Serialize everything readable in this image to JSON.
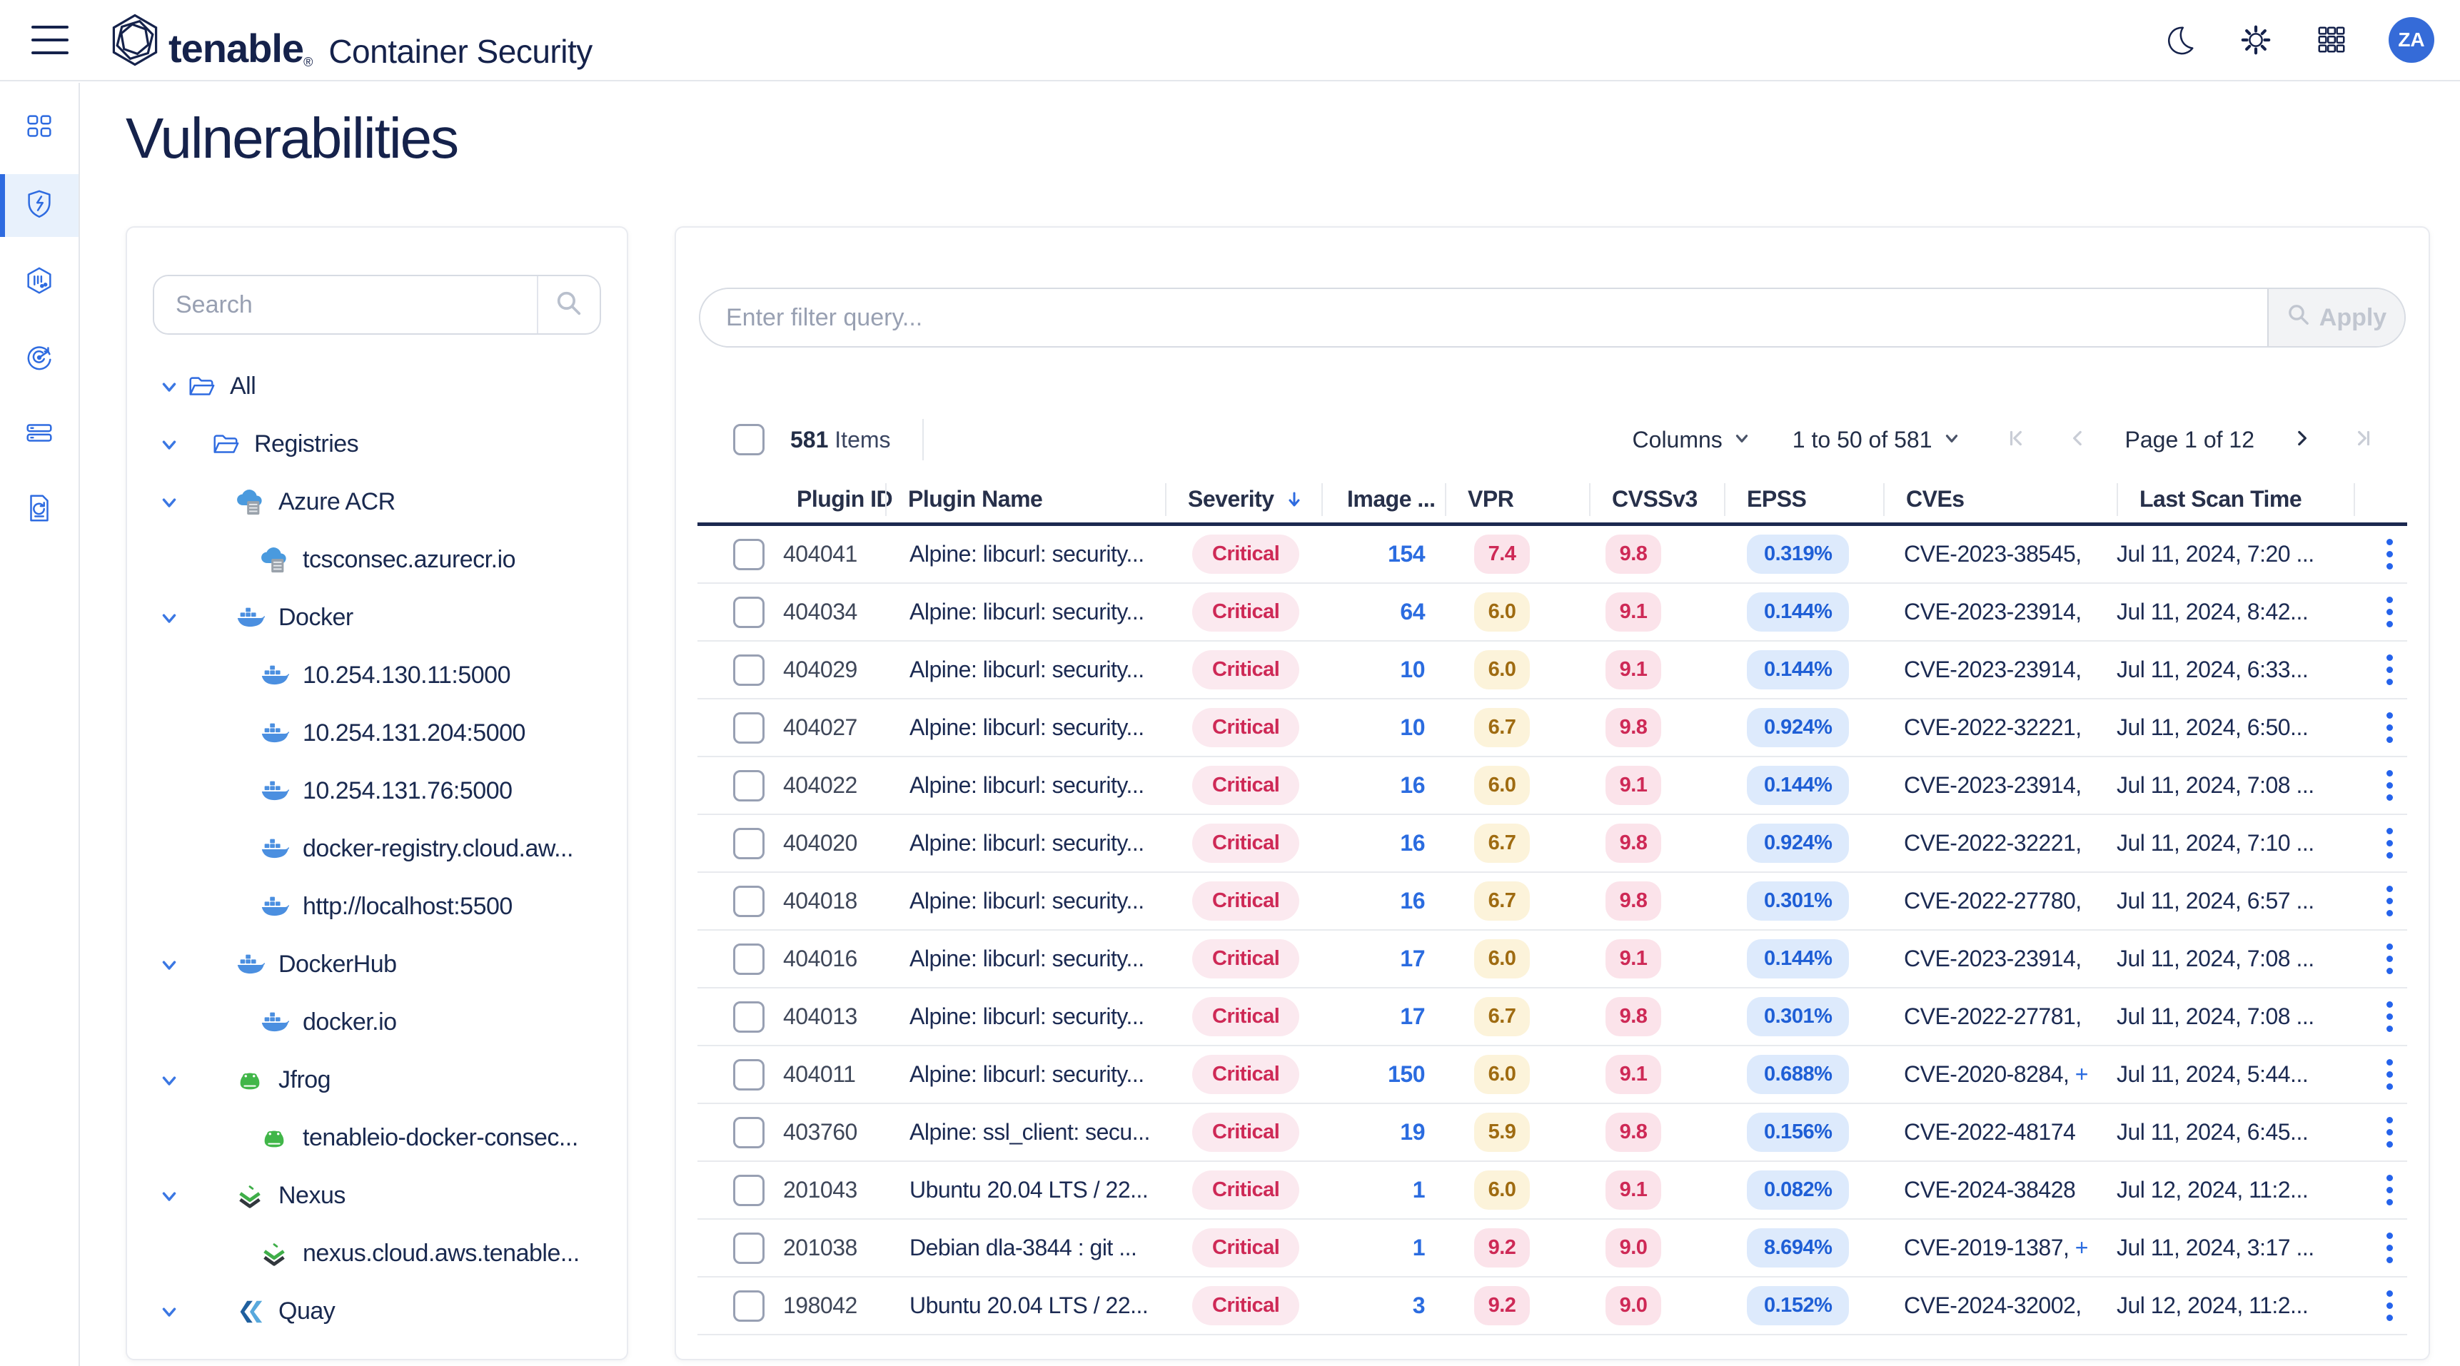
{
  "header": {
    "brand": "tenable",
    "reg_mark": "®",
    "product": "Container Security",
    "avatar_initials": "ZA",
    "avatar_color": "#356bd8"
  },
  "page": {
    "title": "Vulnerabilities"
  },
  "sidebar": {
    "items": [
      {
        "icon": "dashboard-icon",
        "active": false
      },
      {
        "icon": "vulnerabilities-shield-icon",
        "active": true
      },
      {
        "icon": "images-hexagon-icon",
        "active": false
      },
      {
        "icon": "scan-radar-icon",
        "active": false
      },
      {
        "icon": "registries-servers-icon",
        "active": false
      },
      {
        "icon": "reports-document-icon",
        "active": false
      }
    ]
  },
  "tree": {
    "search_placeholder": "Search",
    "items": [
      {
        "label": "All",
        "level": 0,
        "icon": "folder",
        "expandable": true
      },
      {
        "label": "Registries",
        "level": 1,
        "icon": "folder",
        "expandable": true
      },
      {
        "label": "Azure ACR",
        "level": 2,
        "icon": "azure",
        "expandable": true
      },
      {
        "label": "tcsconsec.azurecr.io",
        "level": 3,
        "icon": "azure",
        "expandable": false
      },
      {
        "label": "Docker",
        "level": 2,
        "icon": "docker",
        "expandable": true
      },
      {
        "label": "10.254.130.11:5000",
        "level": 3,
        "icon": "docker",
        "expandable": false
      },
      {
        "label": "10.254.131.204:5000",
        "level": 3,
        "icon": "docker",
        "expandable": false
      },
      {
        "label": "10.254.131.76:5000",
        "level": 3,
        "icon": "docker",
        "expandable": false
      },
      {
        "label": "docker-registry.cloud.aw...",
        "level": 3,
        "icon": "docker",
        "expandable": false
      },
      {
        "label": "http://localhost:5500",
        "level": 3,
        "icon": "docker",
        "expandable": false
      },
      {
        "label": "DockerHub",
        "level": 2,
        "icon": "docker",
        "expandable": true
      },
      {
        "label": "docker.io",
        "level": 3,
        "icon": "docker",
        "expandable": false
      },
      {
        "label": "Jfrog",
        "level": 2,
        "icon": "jfrog",
        "expandable": true
      },
      {
        "label": "tenableio-docker-consec...",
        "level": 3,
        "icon": "jfrog",
        "expandable": false
      },
      {
        "label": "Nexus",
        "level": 2,
        "icon": "nexus",
        "expandable": true
      },
      {
        "label": "nexus.cloud.aws.tenable...",
        "level": 3,
        "icon": "nexus",
        "expandable": false
      },
      {
        "label": "Quay",
        "level": 2,
        "icon": "quay",
        "expandable": true
      }
    ]
  },
  "filter": {
    "placeholder": "Enter filter query...",
    "apply_label": "Apply"
  },
  "toolbar": {
    "items_count": "581",
    "items_label": "Items",
    "columns_label": "Columns",
    "range_label": "1 to 50 of 581",
    "page_label": "Page 1 of 12"
  },
  "table": {
    "columns": [
      "Plugin ID",
      "Plugin Name",
      "Severity",
      "Image ...",
      "VPR",
      "CVSSv3",
      "EPSS",
      "CVEs",
      "Last Scan Time"
    ],
    "sorted_column": "Severity",
    "rows": [
      {
        "plugin_id": "404041",
        "plugin_name": "Alpine: libcurl: security...",
        "severity": "Critical",
        "images": "154",
        "vpr": "7.4",
        "vpr_level": "red",
        "cvss": "9.8",
        "epss": "0.319%",
        "cves": "CVE-2023-38545,",
        "cve_extra": "",
        "scan_time": "Jul 11, 2024, 7:20 ..."
      },
      {
        "plugin_id": "404034",
        "plugin_name": "Alpine: libcurl: security...",
        "severity": "Critical",
        "images": "64",
        "vpr": "6.0",
        "vpr_level": "yellow",
        "cvss": "9.1",
        "epss": "0.144%",
        "cves": "CVE-2023-23914,",
        "cve_extra": "",
        "scan_time": "Jul 11, 2024, 8:42..."
      },
      {
        "plugin_id": "404029",
        "plugin_name": "Alpine: libcurl: security...",
        "severity": "Critical",
        "images": "10",
        "vpr": "6.0",
        "vpr_level": "yellow",
        "cvss": "9.1",
        "epss": "0.144%",
        "cves": "CVE-2023-23914,",
        "cve_extra": "",
        "scan_time": "Jul 11, 2024, 6:33..."
      },
      {
        "plugin_id": "404027",
        "plugin_name": "Alpine: libcurl: security...",
        "severity": "Critical",
        "images": "10",
        "vpr": "6.7",
        "vpr_level": "yellow",
        "cvss": "9.8",
        "epss": "0.924%",
        "cves": "CVE-2022-32221,",
        "cve_extra": "",
        "scan_time": "Jul 11, 2024, 6:50..."
      },
      {
        "plugin_id": "404022",
        "plugin_name": "Alpine: libcurl: security...",
        "severity": "Critical",
        "images": "16",
        "vpr": "6.0",
        "vpr_level": "yellow",
        "cvss": "9.1",
        "epss": "0.144%",
        "cves": "CVE-2023-23914,",
        "cve_extra": "",
        "scan_time": "Jul 11, 2024, 7:08 ..."
      },
      {
        "plugin_id": "404020",
        "plugin_name": "Alpine: libcurl: security...",
        "severity": "Critical",
        "images": "16",
        "vpr": "6.7",
        "vpr_level": "yellow",
        "cvss": "9.8",
        "epss": "0.924%",
        "cves": "CVE-2022-32221,",
        "cve_extra": "",
        "scan_time": "Jul 11, 2024, 7:10 ..."
      },
      {
        "plugin_id": "404018",
        "plugin_name": "Alpine: libcurl: security...",
        "severity": "Critical",
        "images": "16",
        "vpr": "6.7",
        "vpr_level": "yellow",
        "cvss": "9.8",
        "epss": "0.301%",
        "cves": "CVE-2022-27780,",
        "cve_extra": "",
        "scan_time": "Jul 11, 2024, 6:57 ..."
      },
      {
        "plugin_id": "404016",
        "plugin_name": "Alpine: libcurl: security...",
        "severity": "Critical",
        "images": "17",
        "vpr": "6.0",
        "vpr_level": "yellow",
        "cvss": "9.1",
        "epss": "0.144%",
        "cves": "CVE-2023-23914,",
        "cve_extra": "",
        "scan_time": "Jul 11, 2024, 7:08 ..."
      },
      {
        "plugin_id": "404013",
        "plugin_name": "Alpine: libcurl: security...",
        "severity": "Critical",
        "images": "17",
        "vpr": "6.7",
        "vpr_level": "yellow",
        "cvss": "9.8",
        "epss": "0.301%",
        "cves": "CVE-2022-27781,",
        "cve_extra": "",
        "scan_time": "Jul 11, 2024, 7:08 ..."
      },
      {
        "plugin_id": "404011",
        "plugin_name": "Alpine: libcurl: security...",
        "severity": "Critical",
        "images": "150",
        "vpr": "6.0",
        "vpr_level": "yellow",
        "cvss": "9.1",
        "epss": "0.688%",
        "cves": "CVE-2020-8284,",
        "cve_extra": "+",
        "scan_time": "Jul 11, 2024, 5:44..."
      },
      {
        "plugin_id": "403760",
        "plugin_name": "Alpine: ssl_client: secu...",
        "severity": "Critical",
        "images": "19",
        "vpr": "5.9",
        "vpr_level": "yellow",
        "cvss": "9.8",
        "epss": "0.156%",
        "cves": "CVE-2022-48174",
        "cve_extra": "",
        "scan_time": "Jul 11, 2024, 6:45..."
      },
      {
        "plugin_id": "201043",
        "plugin_name": "Ubuntu 20.04 LTS / 22...",
        "severity": "Critical",
        "images": "1",
        "vpr": "6.0",
        "vpr_level": "yellow",
        "cvss": "9.1",
        "epss": "0.082%",
        "cves": "CVE-2024-38428",
        "cve_extra": "",
        "scan_time": "Jul 12, 2024, 11:2..."
      },
      {
        "plugin_id": "201038",
        "plugin_name": "Debian dla-3844 : git ...",
        "severity": "Critical",
        "images": "1",
        "vpr": "9.2",
        "vpr_level": "red",
        "cvss": "9.0",
        "epss": "8.694%",
        "cves": "CVE-2019-1387,",
        "cve_extra": "+",
        "scan_time": "Jul 11, 2024, 3:17 ..."
      },
      {
        "plugin_id": "198042",
        "plugin_name": "Ubuntu 20.04 LTS / 22...",
        "severity": "Critical",
        "images": "3",
        "vpr": "9.2",
        "vpr_level": "red",
        "cvss": "9.0",
        "epss": "0.152%",
        "cves": "CVE-2024-32002,",
        "cve_extra": "",
        "scan_time": "Jul 12, 2024, 11:2..."
      }
    ]
  },
  "colors": {
    "accent_blue": "#2e6be0",
    "navy_text": "#15224b",
    "critical_text": "#ce2956",
    "critical_bg": "#fbe9ef",
    "vpr_yellow_bg": "#fcf3da",
    "vpr_yellow_text": "#9f6b11",
    "epss_bg": "#ddeafc",
    "epss_text": "#1f5fd6",
    "link_blue": "#2b6ce0"
  }
}
